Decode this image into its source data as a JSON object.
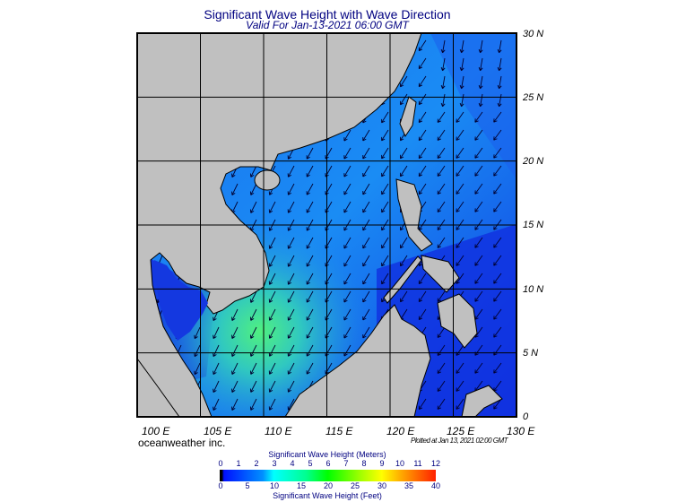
{
  "title": "Significant Wave Height with Wave Direction",
  "subtitle": "Valid For Jan-13-2021 06:00 GMT",
  "lat_labels": [
    "30 N",
    "25 N",
    "20 N",
    "15 N",
    "10 N",
    "5 N",
    "0"
  ],
  "lon_labels": [
    "100 E",
    "105 E",
    "110 E",
    "115 E",
    "120 E",
    "125 E",
    "130 E"
  ],
  "brand": "oceanweather inc.",
  "plotted": "Plotted at Jan 13, 2021 02:00 GMT",
  "legend": {
    "meters_title": "Significant Wave Height (Meters)",
    "feet_title": "Significant Wave Height (Feet)",
    "meters_ticks": [
      "0",
      "1",
      "2",
      "3",
      "4",
      "5",
      "6",
      "7",
      "8",
      "9",
      "10",
      "11",
      "12"
    ],
    "feet_ticks": [
      "0",
      "5",
      "10",
      "15",
      "20",
      "25",
      "30",
      "35",
      "40"
    ]
  },
  "colors": {
    "ocean_deep": "#1236e6",
    "ocean_mid": "#1a86f0",
    "ocean_high": "#40e48a",
    "land": "#c0c0c0"
  },
  "wave_direction": "southwest",
  "map_extent": {
    "lon": [
      100,
      130
    ],
    "lat": [
      0,
      30
    ]
  }
}
